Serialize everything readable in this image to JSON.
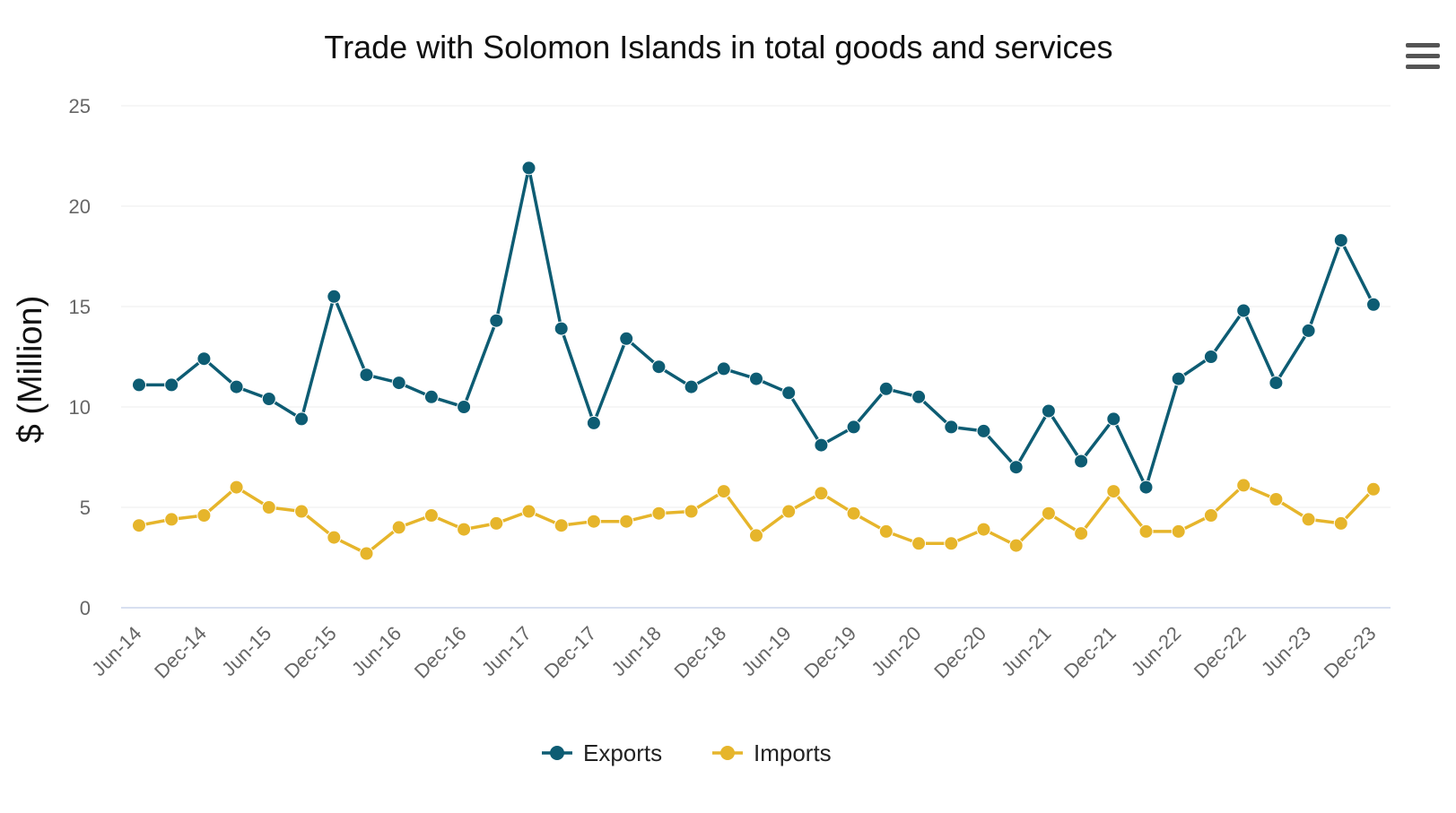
{
  "chart_data": {
    "type": "line",
    "title": "Trade with Solomon Islands in total goods and services",
    "xlabel": "",
    "ylabel": "$ (Million)",
    "ylim": [
      0,
      25
    ],
    "yticks": [
      0,
      5,
      10,
      15,
      20,
      25
    ],
    "grid": true,
    "legend_position": "bottom-center",
    "x": [
      "Jun-14",
      "Sep-14",
      "Dec-14",
      "Mar-15",
      "Jun-15",
      "Sep-15",
      "Dec-15",
      "Mar-16",
      "Jun-16",
      "Sep-16",
      "Dec-16",
      "Mar-17",
      "Jun-17",
      "Sep-17",
      "Dec-17",
      "Mar-18",
      "Jun-18",
      "Sep-18",
      "Dec-18",
      "Mar-19",
      "Jun-19",
      "Sep-19",
      "Dec-19",
      "Mar-20",
      "Jun-20",
      "Sep-20",
      "Dec-20",
      "Mar-21",
      "Jun-21",
      "Sep-21",
      "Dec-21",
      "Mar-22",
      "Jun-22",
      "Sep-22",
      "Dec-22",
      "Mar-23",
      "Jun-23",
      "Sep-23",
      "Dec-23"
    ],
    "tick_labels": [
      "Jun-14",
      "Dec-14",
      "Jun-15",
      "Dec-15",
      "Jun-16",
      "Dec-16",
      "Jun-17",
      "Dec-17",
      "Jun-18",
      "Dec-18",
      "Jun-19",
      "Dec-19",
      "Jun-20",
      "Dec-20",
      "Jun-21",
      "Dec-21",
      "Jun-22",
      "Dec-22",
      "Jun-23",
      "Dec-23"
    ],
    "series": [
      {
        "name": "Exports",
        "color": "#0d5c73",
        "values": [
          11.1,
          11.1,
          12.4,
          11.0,
          10.4,
          9.4,
          15.5,
          11.6,
          11.2,
          10.5,
          10.0,
          14.3,
          21.9,
          13.9,
          9.2,
          13.4,
          12.0,
          11.0,
          11.9,
          11.4,
          10.7,
          8.1,
          9.0,
          10.9,
          10.5,
          9.0,
          8.8,
          7.0,
          9.8,
          7.3,
          9.4,
          6.0,
          11.4,
          12.5,
          14.8,
          11.2,
          13.8,
          18.3,
          15.1
        ]
      },
      {
        "name": "Imports",
        "color": "#e6b52b",
        "values": [
          4.1,
          4.4,
          4.6,
          6.0,
          5.0,
          4.8,
          3.5,
          2.7,
          4.0,
          4.6,
          3.9,
          4.2,
          4.8,
          4.1,
          4.3,
          4.3,
          4.7,
          4.8,
          5.8,
          3.6,
          4.8,
          5.7,
          4.7,
          3.8,
          3.2,
          3.2,
          3.9,
          3.1,
          4.7,
          3.7,
          5.8,
          3.8,
          3.8,
          4.6,
          6.1,
          5.4,
          4.4,
          4.2,
          5.9
        ]
      }
    ]
  },
  "icons": {
    "menu": "hamburger-menu-icon"
  }
}
